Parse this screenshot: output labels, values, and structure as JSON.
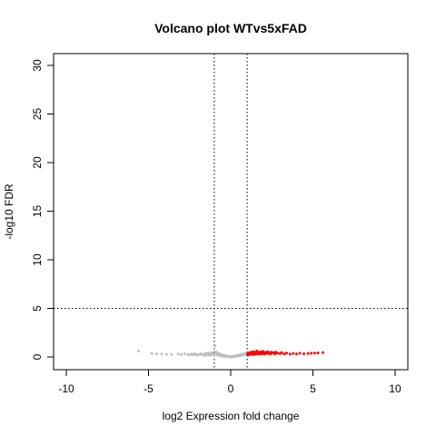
{
  "chart_data": {
    "type": "scatter",
    "title": "Volcano plot WTvs5xFAD",
    "xlabel": "log2 Expression fold change",
    "ylabel": "-log10 FDR",
    "xlim": [
      -10,
      10
    ],
    "ylim": [
      0,
      30
    ],
    "xticks": [
      -10,
      -5,
      0,
      5,
      10
    ],
    "yticks": [
      0,
      5,
      10,
      15,
      20,
      25,
      30
    ],
    "thresholds": {
      "vertical": [
        -1,
        1
      ],
      "horizontal": 5
    },
    "colors": {
      "not_significant": "#bebebe",
      "up": "#ff0000",
      "threshold_line": "#000000"
    },
    "series": [
      {
        "color": "not_significant",
        "points": [
          [
            -5.6,
            0.62
          ],
          [
            -4.8,
            0.35
          ],
          [
            -4.5,
            0.32
          ],
          [
            -4.2,
            0.3
          ],
          [
            -3.9,
            0.28
          ],
          [
            -3.6,
            0.26
          ],
          [
            -3.2,
            0.3
          ],
          [
            -3.0,
            0.24
          ],
          [
            -2.8,
            0.33
          ],
          [
            -2.6,
            0.27
          ],
          [
            -2.5,
            0.2
          ],
          [
            -2.4,
            0.3
          ],
          [
            -2.3,
            0.22
          ],
          [
            -2.2,
            0.36
          ],
          [
            -2.1,
            0.18
          ],
          [
            -2.0,
            0.28
          ],
          [
            -1.9,
            0.25
          ],
          [
            -1.8,
            0.34
          ],
          [
            -1.7,
            0.2
          ],
          [
            -1.6,
            0.3
          ],
          [
            -1.55,
            0.15
          ],
          [
            -1.5,
            0.38
          ],
          [
            -1.45,
            0.24
          ],
          [
            -1.4,
            0.28
          ],
          [
            -1.35,
            0.42
          ],
          [
            -1.3,
            0.18
          ],
          [
            -1.25,
            0.3
          ],
          [
            -1.2,
            0.22
          ],
          [
            -1.15,
            0.45
          ],
          [
            -1.1,
            0.26
          ],
          [
            -1.05,
            0.33
          ],
          [
            -1.0,
            0.2
          ],
          [
            -0.95,
            1.15
          ],
          [
            -0.9,
            0.55
          ],
          [
            -0.85,
            0.3
          ],
          [
            -0.8,
            0.22
          ],
          [
            -0.75,
            0.4
          ],
          [
            -0.7,
            0.16
          ],
          [
            -0.65,
            0.28
          ],
          [
            -0.6,
            0.12
          ],
          [
            -0.55,
            0.22
          ],
          [
            -0.5,
            0.08
          ],
          [
            -0.45,
            0.18
          ],
          [
            -0.4,
            0.1
          ],
          [
            -0.35,
            0.05
          ],
          [
            -0.3,
            0.14
          ],
          [
            -0.25,
            0.04
          ],
          [
            -0.2,
            0.09
          ],
          [
            -0.15,
            0.02
          ],
          [
            -0.1,
            0.06
          ],
          [
            -0.05,
            0.01
          ],
          [
            0.0,
            0.03
          ],
          [
            0.05,
            0.0
          ],
          [
            0.1,
            0.07
          ],
          [
            0.15,
            0.02
          ],
          [
            0.2,
            0.1
          ],
          [
            0.25,
            0.05
          ],
          [
            0.3,
            0.13
          ],
          [
            0.35,
            0.08
          ],
          [
            0.4,
            0.16
          ],
          [
            0.45,
            0.1
          ],
          [
            0.5,
            0.2
          ],
          [
            0.55,
            0.14
          ],
          [
            0.6,
            0.25
          ],
          [
            0.65,
            0.18
          ],
          [
            0.7,
            0.28
          ],
          [
            0.75,
            0.22
          ],
          [
            0.8,
            0.32
          ],
          [
            0.85,
            0.26
          ],
          [
            0.9,
            0.35
          ],
          [
            0.95,
            0.3
          ]
        ]
      },
      {
        "color": "up",
        "points": [
          [
            1.02,
            0.3
          ],
          [
            1.05,
            0.42
          ],
          [
            1.1,
            0.22
          ],
          [
            1.15,
            0.35
          ],
          [
            1.2,
            0.48
          ],
          [
            1.25,
            0.28
          ],
          [
            1.3,
            0.4
          ],
          [
            1.35,
            0.55
          ],
          [
            1.4,
            0.25
          ],
          [
            1.45,
            0.38
          ],
          [
            1.5,
            0.5
          ],
          [
            1.55,
            0.3
          ],
          [
            1.6,
            0.62
          ],
          [
            1.65,
            0.35
          ],
          [
            1.7,
            0.45
          ],
          [
            1.75,
            0.28
          ],
          [
            1.8,
            0.52
          ],
          [
            1.85,
            0.4
          ],
          [
            1.9,
            0.33
          ],
          [
            1.95,
            0.58
          ],
          [
            2.0,
            0.42
          ],
          [
            2.05,
            0.3
          ],
          [
            2.1,
            0.48
          ],
          [
            2.2,
            0.36
          ],
          [
            2.25,
            0.55
          ],
          [
            2.3,
            0.4
          ],
          [
            2.4,
            0.3
          ],
          [
            2.45,
            0.5
          ],
          [
            2.5,
            0.38
          ],
          [
            2.6,
            0.45
          ],
          [
            2.7,
            0.32
          ],
          [
            2.75,
            0.5
          ],
          [
            2.85,
            0.4
          ],
          [
            3.0,
            0.35
          ],
          [
            3.1,
            0.45
          ],
          [
            3.25,
            0.32
          ],
          [
            3.4,
            0.4
          ],
          [
            3.6,
            0.3
          ],
          [
            3.8,
            0.36
          ],
          [
            4.0,
            0.32
          ],
          [
            4.2,
            0.38
          ],
          [
            4.45,
            0.33
          ],
          [
            4.7,
            0.36
          ],
          [
            4.9,
            0.38
          ],
          [
            5.1,
            0.4
          ],
          [
            5.3,
            0.42
          ],
          [
            5.6,
            0.45
          ]
        ]
      }
    ]
  }
}
